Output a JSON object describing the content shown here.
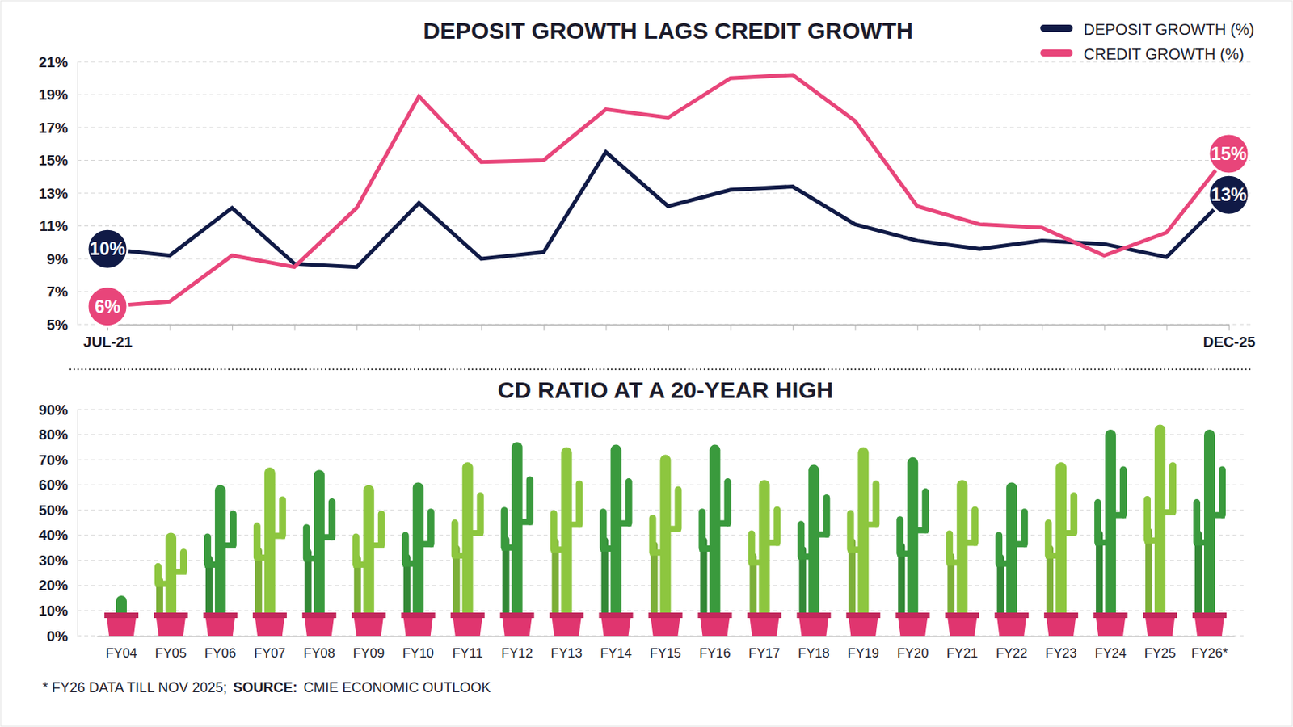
{
  "chart_data": [
    {
      "type": "line",
      "title": "DEPOSIT GROWTH LAGS CREDIT GROWTH",
      "categories": [
        "JUL-21",
        null,
        null,
        null,
        null,
        null,
        null,
        null,
        null,
        null,
        null,
        null,
        null,
        null,
        null,
        null,
        null,
        null,
        "DEC-25"
      ],
      "series": [
        {
          "name": "DEPOSIT GROWTH (%)",
          "color": "#101a46",
          "values": [
            9.6,
            9.2,
            12.1,
            8.7,
            8.5,
            12.4,
            9,
            9.4,
            15.5,
            12.2,
            13.2,
            13.4,
            11.1,
            10.1,
            9.6,
            10.1,
            9.9,
            9.1,
            12.9
          ],
          "value_labels": [
            "10%",
            null,
            null,
            null,
            null,
            null,
            null,
            null,
            null,
            null,
            null,
            null,
            null,
            null,
            null,
            null,
            null,
            null,
            "13%"
          ]
        },
        {
          "name": "CREDIT GROWTH (%)",
          "color": "#e8457a",
          "values": [
            6.1,
            6.4,
            9.2,
            8.5,
            12.1,
            18.9,
            14.9,
            15,
            18.1,
            17.6,
            20,
            20.2,
            17.4,
            12.2,
            11.1,
            10.9,
            9.2,
            10.6,
            15.4
          ],
          "value_labels": [
            "6%",
            null,
            null,
            null,
            null,
            null,
            null,
            null,
            null,
            null,
            null,
            null,
            null,
            null,
            null,
            null,
            null,
            null,
            "15%"
          ]
        }
      ],
      "ylim": [
        5,
        21
      ],
      "yticks": [
        {
          "value": 5,
          "label": "5%"
        },
        {
          "value": 7,
          "label": "7%"
        },
        {
          "value": 9,
          "label": "9%"
        },
        {
          "value": 11,
          "label": "11%"
        },
        {
          "value": 13,
          "label": "13%"
        },
        {
          "value": 15,
          "label": "15%"
        },
        {
          "value": 17,
          "label": "17%"
        },
        {
          "value": 19,
          "label": "19%"
        },
        {
          "value": 21,
          "label": "21%"
        }
      ],
      "grid": true,
      "legend": "top-right",
      "data_labels": true
    },
    {
      "type": "bar",
      "title": "CD RATIO AT A 20-YEAR HIGH",
      "marker": "cactus",
      "categories": [
        "FY04",
        "FY05",
        "FY06",
        "FY07",
        "FY08",
        "FY09",
        "FY10",
        "FY11",
        "FY12",
        "FY13",
        "FY14",
        "FY15",
        "FY16",
        "FY17",
        "FY18",
        "FY19",
        "FY20",
        "FY21",
        "FY22",
        "FY23",
        "FY24",
        "FY25",
        "FY26*"
      ],
      "values": [
        16,
        41,
        60,
        67,
        66,
        60,
        61,
        69,
        77,
        75,
        76,
        72,
        76,
        62,
        68,
        75,
        71,
        62,
        61,
        69,
        82,
        84,
        82
      ],
      "colors": [
        "#3a9a3d",
        "#8dc63f",
        "#3a9a3d",
        "#8dc63f",
        "#3a9a3d",
        "#8dc63f",
        "#3a9a3d",
        "#8dc63f",
        "#3a9a3d",
        "#8dc63f",
        "#3a9a3d",
        "#8dc63f",
        "#3a9a3d",
        "#8dc63f",
        "#3a9a3d",
        "#8dc63f",
        "#3a9a3d",
        "#8dc63f",
        "#3a9a3d",
        "#8dc63f",
        "#3a9a3d",
        "#8dc63f",
        "#3a9a3d"
      ],
      "ylim": [
        0,
        90
      ],
      "yticks": [
        {
          "value": 0,
          "label": "0%"
        },
        {
          "value": 10,
          "label": "10%"
        },
        {
          "value": 20,
          "label": "20%"
        },
        {
          "value": 30,
          "label": "30%"
        },
        {
          "value": 40,
          "label": "40%"
        },
        {
          "value": 50,
          "label": "50%"
        },
        {
          "value": 60,
          "label": "60%"
        },
        {
          "value": 70,
          "label": "70%"
        },
        {
          "value": 80,
          "label": "80%"
        },
        {
          "value": 90,
          "label": "90%"
        }
      ],
      "grid": true
    }
  ],
  "footnote": {
    "text": "* FY26 DATA TILL NOV 2025;",
    "source_label": "SOURCE:",
    "source": "CMIE ECONOMIC OUTLOOK"
  }
}
